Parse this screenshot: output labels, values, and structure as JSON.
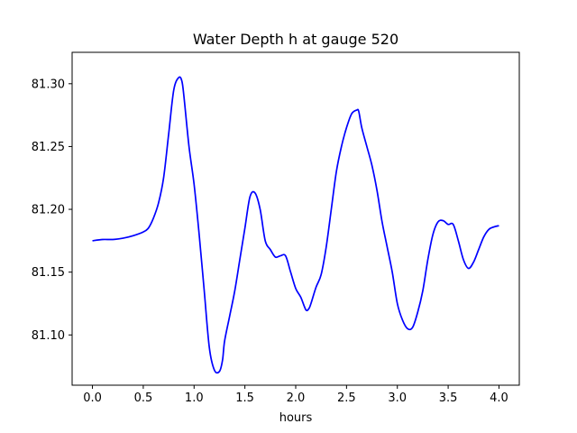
{
  "chart_data": {
    "type": "line",
    "title": "Water Depth h at gauge 520",
    "xlabel": "hours",
    "ylabel": "",
    "xlim": [
      -0.2,
      4.2
    ],
    "ylim": [
      81.06,
      81.325
    ],
    "grid": false,
    "x_ticks": [
      0.0,
      0.5,
      1.0,
      1.5,
      2.0,
      2.5,
      3.0,
      3.5,
      4.0
    ],
    "x_tick_labels": [
      "0.0",
      "0.5",
      "1.0",
      "1.5",
      "2.0",
      "2.5",
      "3.0",
      "3.5",
      "4.0"
    ],
    "y_ticks": [
      81.1,
      81.15,
      81.2,
      81.25,
      81.3
    ],
    "y_tick_labels": [
      "81.10",
      "81.15",
      "81.20",
      "81.25",
      "81.30"
    ],
    "series": [
      {
        "color": "#0000ff",
        "x": [
          0.0,
          0.1,
          0.2,
          0.3,
          0.4,
          0.5,
          0.55,
          0.6,
          0.65,
          0.7,
          0.75,
          0.8,
          0.85,
          0.88,
          0.9,
          0.95,
          1.0,
          1.05,
          1.1,
          1.15,
          1.2,
          1.25,
          1.28,
          1.3,
          1.35,
          1.4,
          1.45,
          1.5,
          1.55,
          1.6,
          1.65,
          1.7,
          1.75,
          1.8,
          1.85,
          1.9,
          1.95,
          2.0,
          2.05,
          2.1,
          2.13,
          2.15,
          2.2,
          2.25,
          2.3,
          2.35,
          2.4,
          2.45,
          2.5,
          2.55,
          2.6,
          2.62,
          2.65,
          2.7,
          2.75,
          2.8,
          2.85,
          2.9,
          2.95,
          3.0,
          3.05,
          3.1,
          3.15,
          3.2,
          3.25,
          3.3,
          3.35,
          3.4,
          3.45,
          3.5,
          3.55,
          3.6,
          3.65,
          3.7,
          3.75,
          3.8,
          3.85,
          3.9,
          3.95,
          4.0
        ],
        "y": [
          81.175,
          81.176,
          81.176,
          81.177,
          81.179,
          81.182,
          81.185,
          81.193,
          81.205,
          81.225,
          81.26,
          81.295,
          81.305,
          81.302,
          81.29,
          81.25,
          81.22,
          81.18,
          81.135,
          81.09,
          81.072,
          81.071,
          81.08,
          81.095,
          81.115,
          81.135,
          81.16,
          81.185,
          81.21,
          81.213,
          81.2,
          81.175,
          81.168,
          81.162,
          81.163,
          81.163,
          81.15,
          81.137,
          81.13,
          81.12,
          81.121,
          81.125,
          81.138,
          81.148,
          81.17,
          81.2,
          81.23,
          81.25,
          81.265,
          81.276,
          81.279,
          81.278,
          81.265,
          81.25,
          81.235,
          81.215,
          81.19,
          81.17,
          81.15,
          81.125,
          81.112,
          81.105,
          81.106,
          81.118,
          81.135,
          81.16,
          81.18,
          81.19,
          81.191,
          81.188,
          81.188,
          81.175,
          81.16,
          81.153,
          81.158,
          81.168,
          81.178,
          81.184,
          81.186,
          81.187
        ]
      }
    ]
  }
}
